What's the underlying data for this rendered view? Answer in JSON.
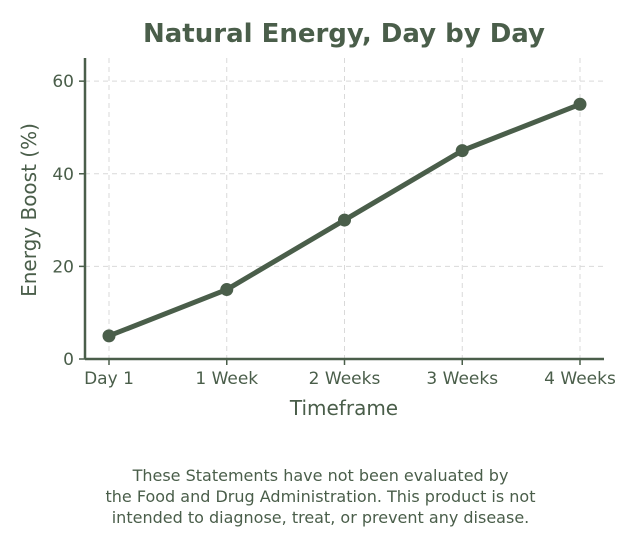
{
  "chart_data": {
    "type": "line",
    "title": "Natural Energy, Day by Day",
    "xlabel": "Timeframe",
    "ylabel": "Energy Boost (%)",
    "categories": [
      "Day 1",
      "1 Week",
      "2 Weeks",
      "3 Weeks",
      "4 Weeks"
    ],
    "series": [
      {
        "values": [
          5,
          15,
          30,
          45,
          55
        ]
      }
    ],
    "ylim": [
      0,
      65
    ],
    "yticks": [
      "0",
      "20",
      "40",
      "60"
    ],
    "grid": true,
    "color": "#4a5e4a",
    "grid_color": "#d9d9d9"
  },
  "disclaimer": {
    "line1": "These Statements have not been evaluated by",
    "line2": "the Food and Drug Administration. This product is not",
    "line3": "intended to diagnose, treat, or prevent any disease."
  }
}
